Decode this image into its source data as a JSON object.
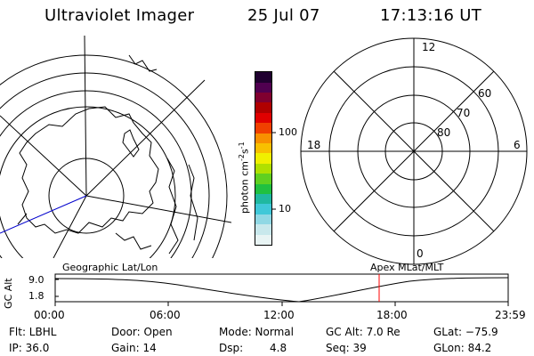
{
  "header": {
    "title": "Ultraviolet Imager",
    "date": "25 Jul 07",
    "time": "17:13:16 UT"
  },
  "colorbar": {
    "unit_prefix": "photon cm",
    "unit_exp1": "-2",
    "unit_mid": "s",
    "unit_exp2": "-1",
    "tick_labels": [
      "100",
      "10"
    ],
    "colors": [
      "#e8f4f4",
      "#c8e8ec",
      "#90d8e4",
      "#40c8d8",
      "#20b8a0",
      "#20c040",
      "#60d020",
      "#b0e000",
      "#f0f000",
      "#f8c000",
      "#f89000",
      "#f04000",
      "#e00000",
      "#b00000",
      "#800030",
      "#500050",
      "#200030"
    ]
  },
  "polar_plot": {
    "hour_labels": {
      "top": "12",
      "left": "18",
      "right": "6",
      "bottom": "0"
    },
    "lat_labels": [
      "60",
      "70",
      "80"
    ]
  },
  "timeline": {
    "ylabel": "GC Alt",
    "left_title": "Geographic Lat/Lon",
    "right_title": "Apex MLat/MLT",
    "y_ticks": [
      "9.0",
      "1.8"
    ],
    "x_ticks": [
      "00:00",
      "06:00",
      "12:00",
      "18:00",
      "23:59"
    ],
    "marker_color": "#ff0000"
  },
  "info": {
    "row1": [
      "Flt: LBHL",
      "Door: Open",
      "Mode: Normal",
      "GC Alt: 7.0 Re",
      "GLat: −75.9"
    ],
    "row2": [
      "IP: 36.0",
      "Gain: 14",
      "Dsp:",
      "4.8",
      "Seq: 39",
      "GLon:  84.2"
    ]
  }
}
